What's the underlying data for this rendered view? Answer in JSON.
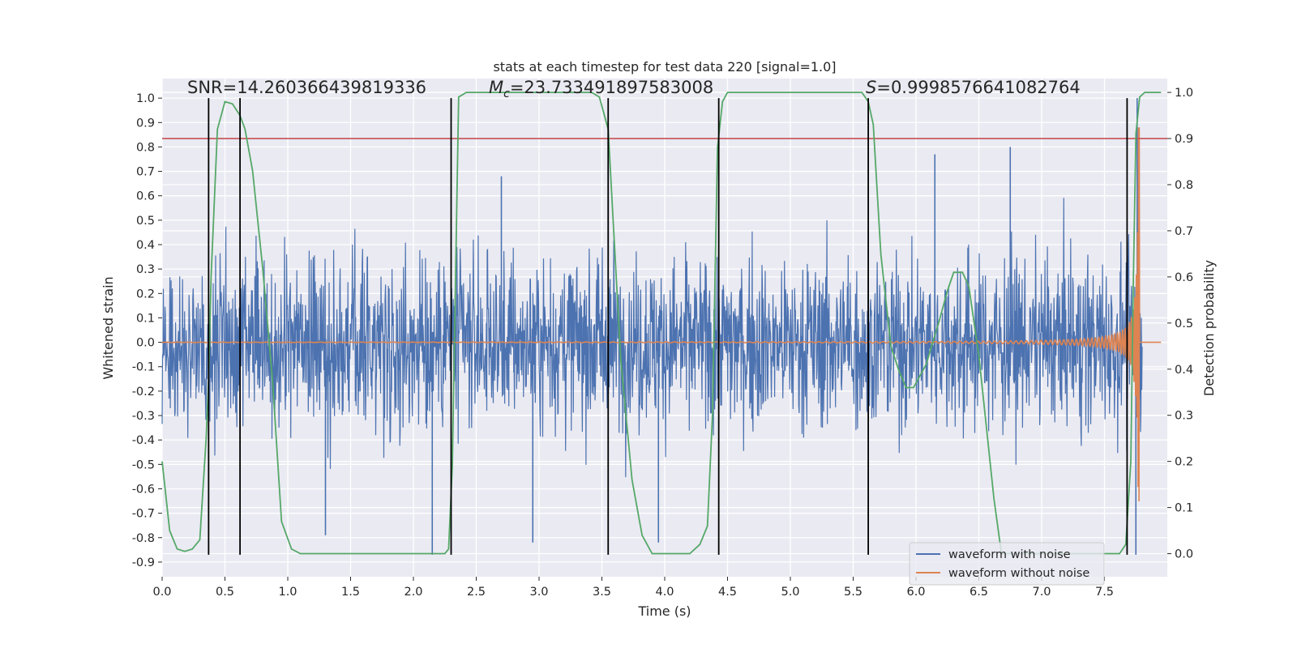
{
  "chart_data": {
    "type": "line",
    "title": "stats at each timestep for test data 220 [signal=1.0]",
    "xlabel": "Time (s)",
    "ylabel": "Whitened strain",
    "y2label": "Detection probability",
    "xlim": [
      0.0,
      8.0
    ],
    "ylim": [
      -0.96,
      1.08
    ],
    "y2lim": [
      -0.05,
      1.03
    ],
    "xticks": [
      0.0,
      0.5,
      1.0,
      1.5,
      2.0,
      2.5,
      3.0,
      3.5,
      4.0,
      4.5,
      5.0,
      5.5,
      6.0,
      6.5,
      7.0,
      7.5
    ],
    "xtick_labels": [
      "0.0",
      "0.5",
      "1.0",
      "1.5",
      "2.0",
      "2.5",
      "3.0",
      "3.5",
      "4.0",
      "4.5",
      "5.0",
      "5.5",
      "6.0",
      "6.5",
      "7.0",
      "7.5"
    ],
    "yticks": [
      1.0,
      0.9,
      0.8,
      0.7,
      0.6,
      0.5,
      0.4,
      0.3,
      0.2,
      0.1,
      0.0,
      -0.1,
      -0.2,
      -0.3,
      -0.4,
      -0.5,
      -0.6,
      -0.7,
      -0.8,
      -0.9
    ],
    "ytick_labels": [
      "1.0",
      "0.9",
      "0.8",
      "0.7",
      "0.6",
      "0.5",
      "0.4",
      "0.3",
      "0.2",
      "0.1",
      "0.0",
      "-0.1",
      "-0.2",
      "-0.3",
      "-0.4",
      "-0.5",
      "-0.6",
      "-0.7",
      "-0.8",
      "-0.9"
    ],
    "y2ticks": [
      1.0,
      0.9,
      0.8,
      0.7,
      0.6,
      0.5,
      0.4,
      0.3,
      0.2,
      0.1,
      0.0
    ],
    "y2tick_labels": [
      "1.0",
      "0.9",
      "0.8",
      "0.7",
      "0.6",
      "0.5",
      "0.4",
      "0.3",
      "0.2",
      "0.1",
      "0.0"
    ],
    "annotations": [
      {
        "text": "SNR=14.260366439819336",
        "x": 0.2,
        "y": 1.02
      },
      {
        "text": "=23.733491897583008",
        "math_prefix": "M",
        "math_sub": "c",
        "x": 2.6,
        "y": 1.02
      },
      {
        "text": "=0.9998576641082764",
        "math_prefix": "S",
        "x": 5.6,
        "y": 1.02
      }
    ],
    "threshold": {
      "axis": "right",
      "value": 0.9
    },
    "vertical_lines": [
      0.37,
      0.62,
      2.3,
      3.55,
      4.43,
      5.62,
      7.68
    ],
    "vertical_line_range": [
      -0.87,
      1.0
    ],
    "legend_position": "lower right",
    "series": [
      {
        "name": "waveform with noise",
        "axis": "left",
        "color": "#4c72b0",
        "noise_std": 0.24,
        "noise_seed": 220,
        "spikes": [
          {
            "x": 3.55,
            "y": 0.73
          },
          {
            "x": 6.75,
            "y": 0.8
          },
          {
            "x": 6.15,
            "y": 0.77
          },
          {
            "x": 2.15,
            "y": -0.87
          },
          {
            "x": 3.95,
            "y": -0.82
          },
          {
            "x": 2.95,
            "y": -0.82
          },
          {
            "x": 1.3,
            "y": -0.79
          },
          {
            "x": 2.7,
            "y": 0.68
          },
          {
            "x": 7.76,
            "y": 1.0
          },
          {
            "x": 7.75,
            "y": -0.87
          }
        ]
      },
      {
        "name": "waveform without noise",
        "axis": "left",
        "color": "#dd8452",
        "chirp_t_coalescence": 7.78,
        "chirp_peak_amplitude": 0.88,
        "chirp_end_time": 7.78
      },
      {
        "name": "detection probability",
        "axis": "right",
        "color": "#55a868",
        "x": [
          0.0,
          0.06,
          0.12,
          0.18,
          0.24,
          0.3,
          0.35,
          0.37,
          0.39,
          0.44,
          0.5,
          0.56,
          0.62,
          0.66,
          0.72,
          0.8,
          0.88,
          0.95,
          1.03,
          1.1,
          2.25,
          2.28,
          2.31,
          2.36,
          2.42,
          3.42,
          3.48,
          3.55,
          3.58,
          3.65,
          3.74,
          3.82,
          3.9,
          3.98,
          4.2,
          4.28,
          4.34,
          4.38,
          4.42,
          4.46,
          4.5,
          4.6,
          5.57,
          5.62,
          5.66,
          5.72,
          5.8,
          5.86,
          5.92,
          5.98,
          6.08,
          6.18,
          6.25,
          6.3,
          6.37,
          6.42,
          6.5,
          6.62,
          6.68,
          7.62,
          7.67,
          7.71,
          7.73,
          7.75,
          7.78,
          7.82,
          7.95
        ],
        "y": [
          0.2,
          0.05,
          0.01,
          0.005,
          0.01,
          0.03,
          0.25,
          0.38,
          0.6,
          0.92,
          0.98,
          0.975,
          0.95,
          0.92,
          0.83,
          0.62,
          0.37,
          0.07,
          0.01,
          0.0,
          0.0,
          0.01,
          0.19,
          0.99,
          1.0,
          1.0,
          0.99,
          0.92,
          0.77,
          0.42,
          0.16,
          0.04,
          0.0,
          0.0,
          0.0,
          0.02,
          0.06,
          0.3,
          0.88,
          0.98,
          1.0,
          1.0,
          1.0,
          0.98,
          0.93,
          0.65,
          0.45,
          0.4,
          0.36,
          0.36,
          0.41,
          0.5,
          0.57,
          0.61,
          0.61,
          0.58,
          0.43,
          0.12,
          0.0,
          0.0,
          0.02,
          0.2,
          0.6,
          0.91,
          0.99,
          1.0,
          1.0
        ]
      }
    ]
  }
}
